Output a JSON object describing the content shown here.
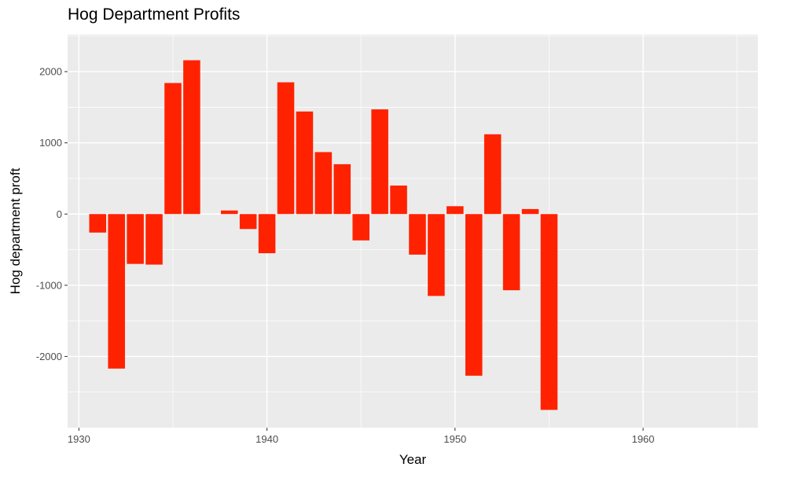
{
  "chart_data": {
    "type": "bar",
    "title": "Hog Department Profits",
    "xlabel": "Year",
    "ylabel": "Hog department proft",
    "x": [
      1931,
      1932,
      1933,
      1934,
      1935,
      1936,
      1937,
      1938,
      1939,
      1940,
      1941,
      1942,
      1943,
      1944,
      1945,
      1946,
      1947,
      1948,
      1949,
      1950,
      1951,
      1952,
      1953,
      1954,
      1955
    ],
    "values": [
      -260,
      -2170,
      -700,
      -710,
      1840,
      2160,
      0,
      50,
      -210,
      -550,
      1850,
      1440,
      870,
      700,
      -370,
      1470,
      400,
      -570,
      -1150,
      110,
      -2270,
      1120,
      -1070,
      70,
      -2750
    ],
    "xlim": [
      1929.4,
      1966.1
    ],
    "ylim": [
      -3000,
      2520
    ],
    "x_ticks": [
      1930,
      1940,
      1950,
      1960
    ],
    "x_tick_labels": [
      "1930",
      "1940",
      "1950",
      "1960"
    ],
    "y_ticks": [
      -2000,
      -1000,
      0,
      1000,
      2000
    ],
    "y_tick_labels": [
      "-2000",
      "-1000",
      "0",
      "1000",
      "2000"
    ],
    "grid": true,
    "bar_color": "#ff2200",
    "panel_color": "#ebebeb",
    "grid_color": "#ffffff"
  }
}
